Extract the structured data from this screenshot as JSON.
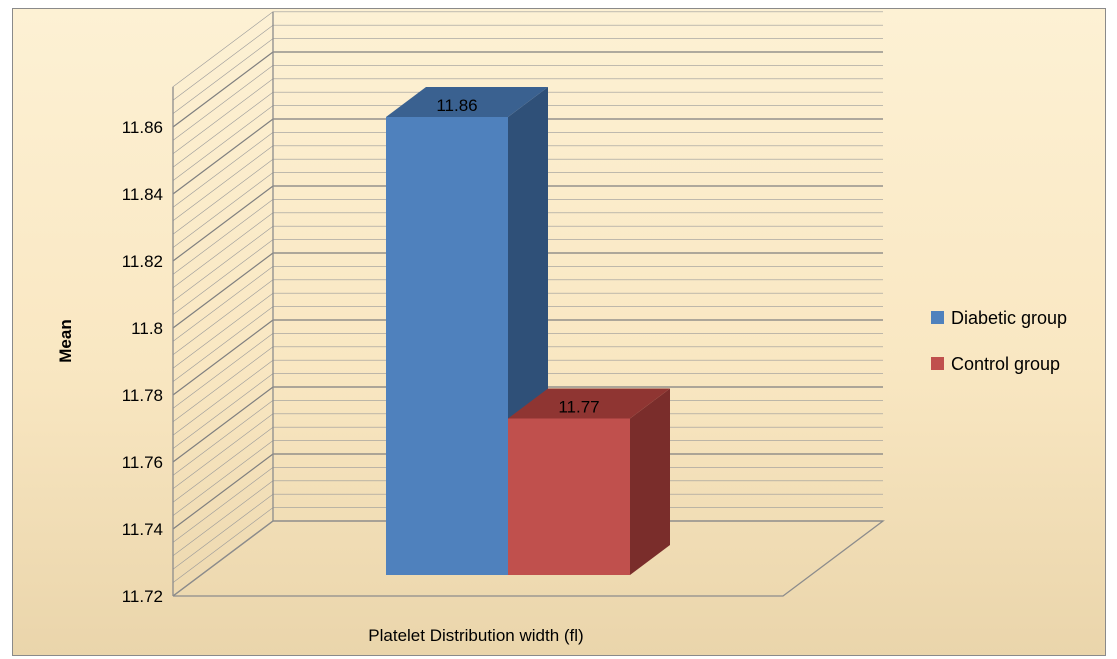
{
  "chart_data": {
    "type": "bar",
    "title": "",
    "xlabel": "Platelet Distribution width (fl)",
    "ylabel": "Mean",
    "ylim": [
      11.72,
      11.86
    ],
    "yticks": [
      "11.86",
      "11.84",
      "11.82",
      "11.8",
      "11.78",
      "11.76",
      "11.74",
      "11.72"
    ],
    "categories": [
      "Platelet Distribution width (fl)"
    ],
    "series": [
      {
        "name": "Diabetic group",
        "values": [
          11.86
        ],
        "label": "11.86",
        "color": "#4f81bd",
        "side_color": "#2f5078",
        "top_color": "#3a6190"
      },
      {
        "name": "Control group",
        "values": [
          11.77
        ],
        "label": "11.77",
        "color": "#c0504d",
        "side_color": "#7a2d2b",
        "top_color": "#8f3532"
      }
    ],
    "grid": true,
    "legend_position": "right"
  }
}
